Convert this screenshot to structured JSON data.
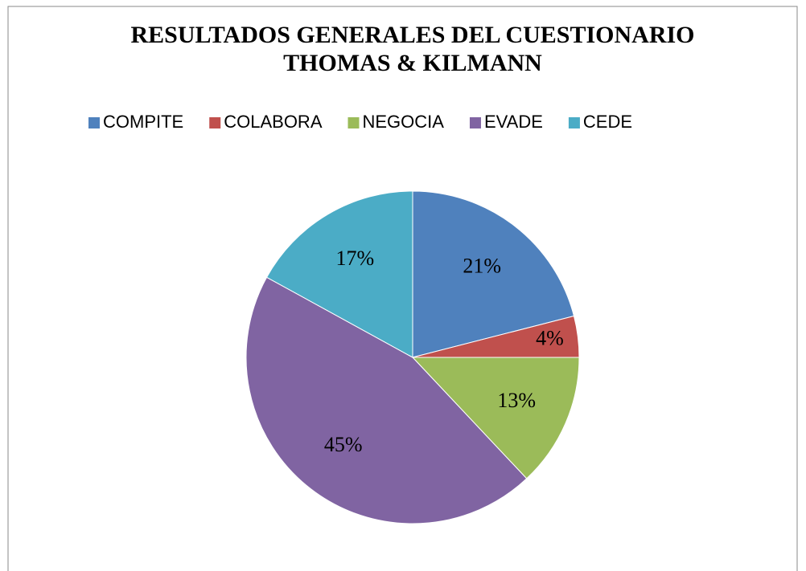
{
  "chart_data": {
    "type": "pie",
    "title": [
      "RESULTADOS GENERALES DEL CUESTIONARIO",
      "THOMAS & KILMANN"
    ],
    "categories": [
      "COMPITE",
      "COLABORA",
      "NEGOCIA",
      "EVADE",
      "CEDE"
    ],
    "values": [
      21,
      4,
      13,
      45,
      17
    ],
    "value_labels": [
      "21%",
      "4%",
      "13%",
      "45%",
      "17%"
    ],
    "colors": [
      "#4f81bd",
      "#c0504d",
      "#9bbb59",
      "#8064a2",
      "#4bacc6"
    ],
    "legend": "top"
  }
}
